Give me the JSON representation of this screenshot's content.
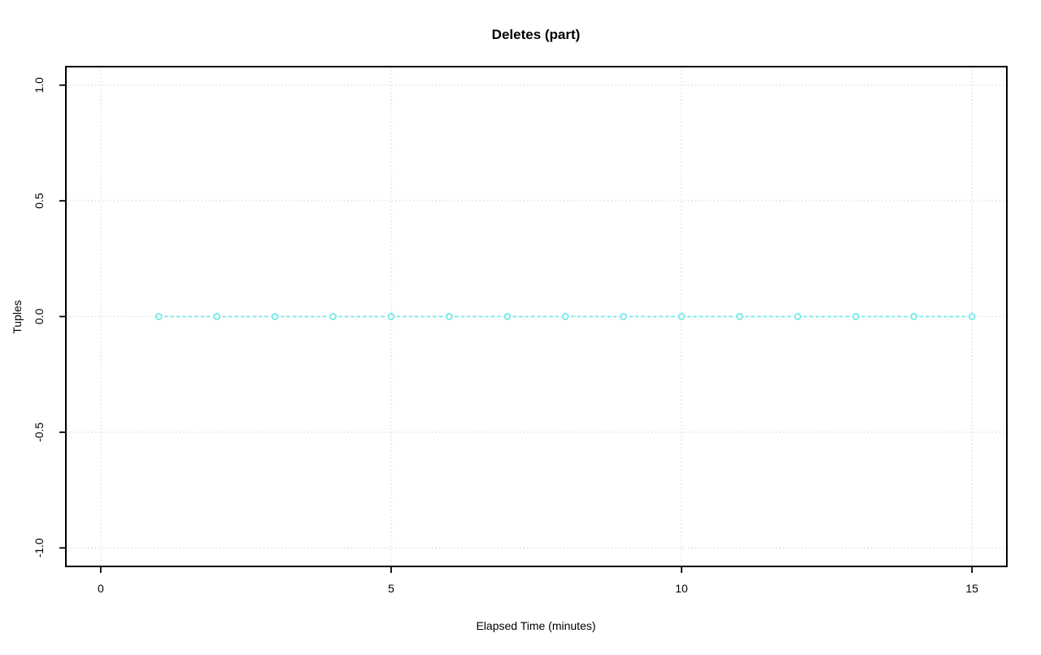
{
  "page": {
    "background": "#ffffff"
  },
  "chart_data": {
    "type": "line",
    "title": "Deletes (part)",
    "xlabel": "Elapsed Time (minutes)",
    "ylabel": "Tuples",
    "x": [
      1,
      2,
      3,
      4,
      5,
      6,
      7,
      8,
      9,
      10,
      11,
      12,
      13,
      14,
      15
    ],
    "series": [
      {
        "name": "Deletes (part)",
        "values": [
          0,
          0,
          0,
          0,
          0,
          0,
          0,
          0,
          0,
          0,
          0,
          0,
          0,
          0,
          0
        ]
      }
    ],
    "xlim": [
      0,
      15
    ],
    "ylim": [
      -1,
      1
    ],
    "x_ticks": [
      0,
      5,
      10,
      15
    ],
    "x_tick_labels": [
      "0",
      "5",
      "10",
      "15"
    ],
    "y_ticks": [
      -1,
      -0.5,
      0,
      0.5,
      1
    ],
    "y_tick_labels": [
      "-1.0",
      "-0.5",
      "0.0",
      "0.5",
      "1.0"
    ],
    "grid": true,
    "grid_style": "dotted",
    "legend_position": "none",
    "marker": "open-circle",
    "line_style": "dashed",
    "colors": {
      "series": "#6ceaea",
      "grid": "#d4d4d4",
      "axis": "#000000"
    }
  }
}
